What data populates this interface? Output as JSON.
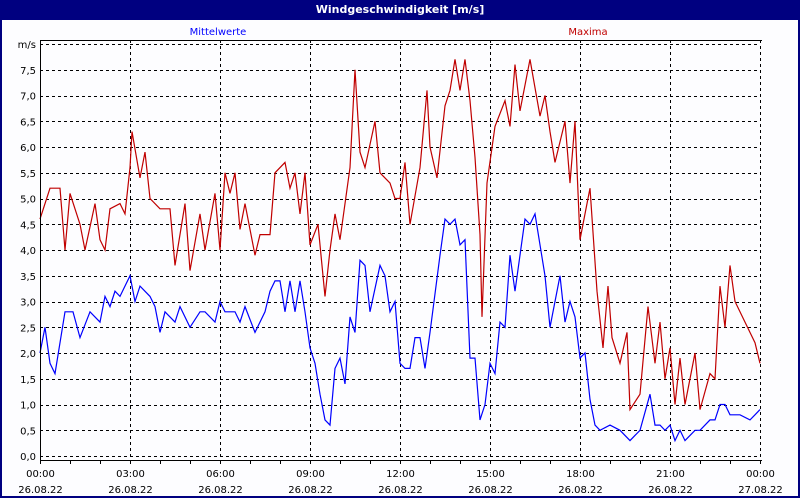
{
  "window": {
    "title": "Windgeschwindigkeit [m/s]"
  },
  "chart_data": {
    "type": "line",
    "title": "Windgeschwindigkeit [m/s]",
    "ylabel": "m/s",
    "ylim": [
      0,
      8
    ],
    "xlim_minutes": [
      0,
      1440
    ],
    "grid": true,
    "y_ticks": [
      "0,0",
      "0,5",
      "1,0",
      "1,5",
      "2,0",
      "2,5",
      "3,0",
      "3,5",
      "4,0",
      "4,5",
      "5,0",
      "5,5",
      "6,0",
      "6,5",
      "7,0",
      "7,5"
    ],
    "x_ticks": [
      {
        "time": "00:00",
        "date": "26.08.22"
      },
      {
        "time": "03:00",
        "date": "26.08.22"
      },
      {
        "time": "06:00",
        "date": "26.08.22"
      },
      {
        "time": "09:00",
        "date": "26.08.22"
      },
      {
        "time": "12:00",
        "date": "26.08.22"
      },
      {
        "time": "15:00",
        "date": "26.08.22"
      },
      {
        "time": "18:00",
        "date": "26.08.22"
      },
      {
        "time": "21:00",
        "date": "26.08.22"
      },
      {
        "time": "00:00",
        "date": "27.08.22"
      }
    ],
    "series": [
      {
        "name": "Mittelwerte",
        "color": "#0000ff",
        "minutes": [
          0,
          10,
          20,
          30,
          50,
          66,
          80,
          100,
          120,
          130,
          140,
          150,
          160,
          180,
          190,
          200,
          220,
          230,
          240,
          250,
          270,
          280,
          300,
          320,
          330,
          350,
          360,
          370,
          390,
          400,
          410,
          430,
          450,
          460,
          470,
          480,
          490,
          500,
          510,
          520,
          530,
          540,
          550,
          560,
          570,
          580,
          590,
          600,
          610,
          620,
          630,
          640,
          650,
          660,
          680,
          690,
          700,
          710,
          720,
          730,
          740,
          750,
          760,
          770,
          780,
          800,
          810,
          820,
          830,
          840,
          850,
          860,
          870,
          880,
          890,
          900,
          910,
          920,
          930,
          940,
          950,
          970,
          980,
          990,
          1010,
          1020,
          1040,
          1050,
          1060,
          1070,
          1080,
          1090,
          1100,
          1110,
          1120,
          1140,
          1160,
          1180,
          1200,
          1220,
          1230,
          1240,
          1250,
          1260,
          1270,
          1280,
          1290,
          1310,
          1320,
          1340,
          1350,
          1360,
          1370,
          1380,
          1400,
          1420,
          1430,
          1440
        ],
        "values": [
          2.0,
          2.5,
          1.8,
          1.6,
          2.8,
          2.8,
          2.3,
          2.8,
          2.6,
          3.1,
          2.9,
          3.2,
          3.1,
          3.5,
          3.0,
          3.3,
          3.1,
          2.9,
          2.4,
          2.8,
          2.6,
          2.9,
          2.5,
          2.8,
          2.8,
          2.6,
          3.0,
          2.8,
          2.8,
          2.6,
          2.9,
          2.4,
          2.8,
          3.2,
          3.4,
          3.4,
          2.8,
          3.4,
          2.8,
          3.4,
          2.8,
          2.1,
          1.8,
          1.2,
          0.7,
          0.6,
          1.7,
          1.9,
          1.4,
          2.7,
          2.4,
          3.8,
          3.7,
          2.8,
          3.7,
          3.5,
          2.8,
          3.0,
          1.8,
          1.7,
          1.7,
          2.3,
          2.3,
          1.7,
          2.4,
          3.9,
          4.6,
          4.5,
          4.6,
          4.1,
          4.2,
          1.9,
          1.9,
          0.7,
          1.0,
          1.8,
          1.6,
          2.6,
          2.5,
          3.9,
          3.2,
          4.6,
          4.5,
          4.7,
          3.5,
          2.5,
          3.5,
          2.6,
          3.0,
          2.7,
          1.9,
          2.0,
          1.1,
          0.6,
          0.5,
          0.6,
          0.5,
          0.3,
          0.5,
          1.2,
          0.6,
          0.6,
          0.5,
          0.6,
          0.3,
          0.5,
          0.3,
          0.5,
          0.5,
          0.7,
          0.7,
          1.0,
          1.0,
          0.8,
          0.8,
          0.7,
          0.8,
          0.9
        ]
      },
      {
        "name": "Maxima",
        "color": "#c00000",
        "minutes": [
          0,
          20,
          40,
          50,
          60,
          80,
          90,
          110,
          120,
          130,
          140,
          160,
          170,
          180,
          184,
          200,
          210,
          220,
          240,
          260,
          270,
          290,
          300,
          320,
          330,
          350,
          360,
          370,
          380,
          390,
          400,
          410,
          430,
          440,
          460,
          470,
          490,
          500,
          510,
          520,
          530,
          540,
          556,
          570,
          580,
          590,
          600,
          620,
          630,
          640,
          650,
          670,
          680,
          700,
          710,
          720,
          730,
          740,
          760,
          774,
          780,
          794,
          810,
          820,
          830,
          840,
          850,
          860,
          870,
          880,
          884,
          894,
          910,
          930,
          940,
          950,
          960,
          980,
          1000,
          1010,
          1020,
          1030,
          1050,
          1060,
          1070,
          1080,
          1090,
          1100,
          1114,
          1126,
          1136,
          1144,
          1160,
          1174,
          1180,
          1200,
          1216,
          1230,
          1240,
          1250,
          1260,
          1270,
          1280,
          1290,
          1300,
          1310,
          1320,
          1340,
          1350,
          1360,
          1370,
          1380,
          1390,
          1410,
          1430,
          1440
        ],
        "values": [
          4.6,
          5.2,
          5.2,
          4.0,
          5.1,
          4.5,
          4.0,
          4.9,
          4.2,
          4.0,
          4.8,
          4.9,
          4.7,
          5.6,
          6.3,
          5.4,
          5.9,
          5.0,
          4.8,
          4.8,
          3.7,
          4.9,
          3.6,
          4.7,
          4.0,
          5.1,
          4.0,
          5.5,
          5.1,
          5.5,
          4.4,
          4.9,
          3.9,
          4.3,
          4.3,
          5.5,
          5.7,
          5.2,
          5.5,
          4.7,
          5.5,
          4.1,
          4.5,
          3.1,
          4.0,
          4.7,
          4.2,
          5.6,
          7.5,
          5.9,
          5.6,
          6.5,
          5.5,
          5.3,
          5.0,
          5.0,
          5.7,
          4.5,
          5.6,
          7.1,
          6.0,
          5.4,
          6.8,
          7.1,
          7.7,
          7.1,
          7.7,
          6.9,
          5.8,
          4.3,
          2.7,
          5.3,
          6.4,
          6.9,
          6.4,
          7.6,
          6.7,
          7.7,
          6.6,
          7.0,
          6.3,
          5.7,
          6.5,
          5.3,
          6.5,
          4.2,
          4.7,
          5.2,
          3.2,
          2.1,
          3.3,
          2.3,
          1.8,
          2.4,
          0.9,
          1.2,
          2.9,
          1.8,
          2.6,
          1.5,
          2.1,
          1.0,
          1.9,
          1.0,
          1.5,
          2.0,
          0.9,
          1.6,
          1.5,
          3.3,
          2.5,
          3.7,
          3.0,
          2.6,
          2.2,
          1.8
        ]
      }
    ]
  }
}
